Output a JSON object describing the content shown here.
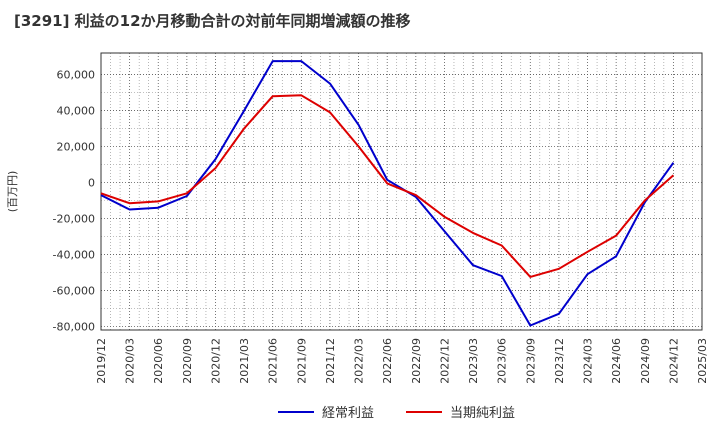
{
  "chart_data": {
    "type": "line",
    "title": "[3291]  利益の12か月移動合計の対前年同期増減額の推移",
    "ylabel": "(百万円)",
    "xlabel": "",
    "x": [
      "2019/12",
      "2020/03",
      "2020/06",
      "2020/09",
      "2020/12",
      "2021/03",
      "2021/06",
      "2021/09",
      "2021/12",
      "2022/03",
      "2022/06",
      "2022/09",
      "2022/12",
      "2023/03",
      "2023/06",
      "2023/09",
      "2023/12",
      "2024/03",
      "2024/06",
      "2024/09",
      "2024/12",
      "2025/03"
    ],
    "y_ticks": [
      "60,000",
      "40,000",
      "20,000",
      "0",
      "-20,000",
      "-40,000",
      "-60,000",
      "-80,000"
    ],
    "y_tick_values": [
      60000,
      40000,
      20000,
      0,
      -20000,
      -40000,
      -60000,
      -80000
    ],
    "ylim": [
      -82000,
      72000
    ],
    "grid": true,
    "legend_position": "bottom",
    "series": [
      {
        "name": "経常利益",
        "color": "#0000cc",
        "values": [
          -7000,
          -15000,
          -14000,
          -7500,
          13000,
          40000,
          67500,
          67500,
          55000,
          32000,
          1500,
          -8000,
          -27000,
          -46000,
          -52000,
          -79500,
          -73000,
          -51000,
          -41000,
          -11000,
          11000,
          null
        ]
      },
      {
        "name": "当期純利益",
        "color": "#dd0000",
        "values": [
          -6000,
          -11500,
          -10500,
          -6000,
          8000,
          30000,
          48000,
          48500,
          39000,
          20000,
          -500,
          -7000,
          -19000,
          -28000,
          -35000,
          -52500,
          -48000,
          -38500,
          -29500,
          -10000,
          4000,
          null
        ]
      }
    ]
  }
}
